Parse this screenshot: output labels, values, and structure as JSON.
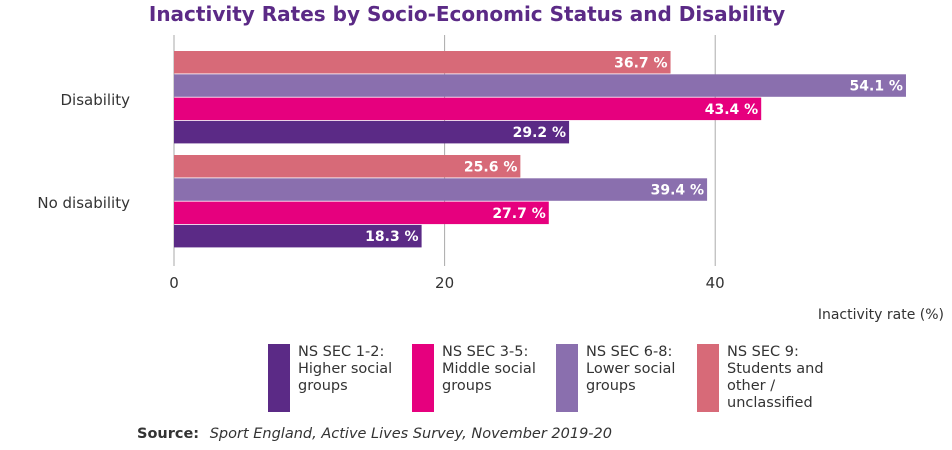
{
  "chart_data": {
    "type": "bar",
    "orientation": "horizontal",
    "title": "Inactivity Rates by Socio-Economic Status and Disability",
    "categories": [
      "Disability",
      "No disability"
    ],
    "xlabel": "Inactivity rate (%)",
    "xlim": [
      0,
      54.1
    ],
    "xticks": [
      "0",
      "20",
      "40"
    ],
    "grid": true,
    "legend_position": "bottom",
    "series": [
      {
        "name": "NS SEC 1-2: Higher social groups",
        "color": "#5b2a86",
        "values": [
          29.2,
          18.3
        ],
        "labels": [
          "29.2 %",
          "18.3 %"
        ]
      },
      {
        "name": "NS SEC 3-5: Middle social groups",
        "color": "#e6007e",
        "values": [
          43.4,
          27.7
        ],
        "labels": [
          "43.4 %",
          "27.7 %"
        ]
      },
      {
        "name": "NS SEC 6-8: Lower social groups",
        "color": "#8a6fae",
        "values": [
          54.1,
          39.4
        ],
        "labels": [
          "54.1 %",
          "39.4 %"
        ]
      },
      {
        "name": "NS SEC 9: Students and other / unclassified",
        "color": "#d76a78",
        "values": [
          36.7,
          25.6
        ],
        "labels": [
          "36.7 %",
          "25.6 %"
        ]
      }
    ]
  },
  "source": {
    "label": "Source:",
    "text": "Sport England, Active Lives Survey, November 2019-20"
  }
}
